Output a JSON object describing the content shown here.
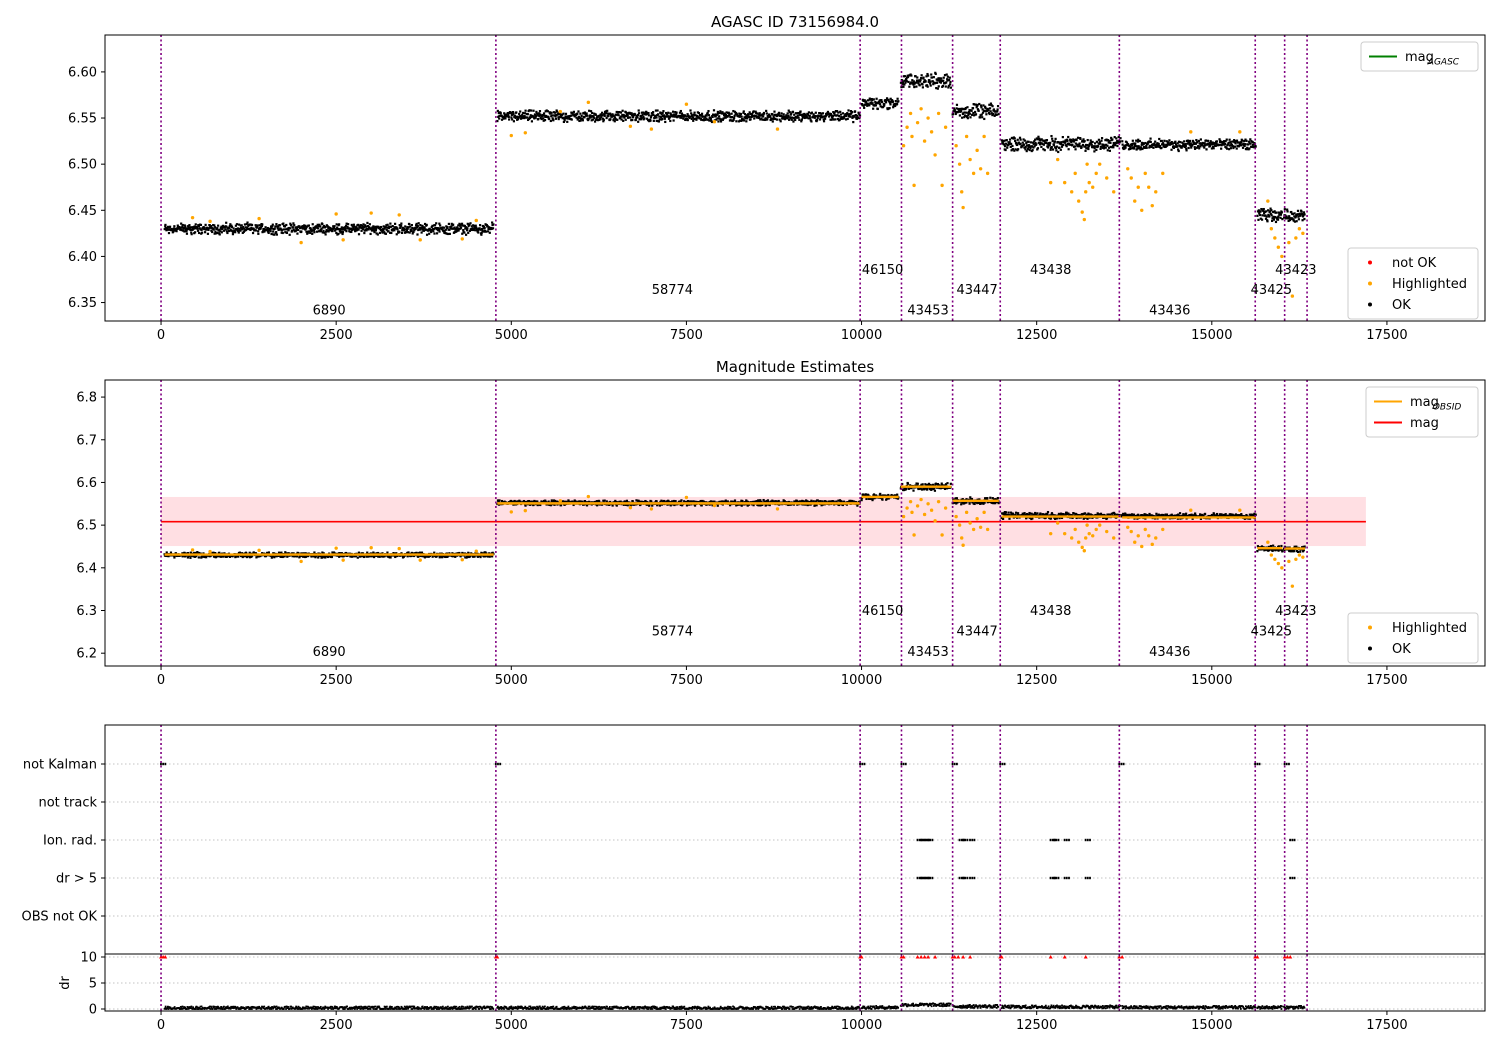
{
  "chart_data": [
    {
      "type": "scatter",
      "title": "AGASC ID 73156984.0",
      "xlim": [
        -800,
        18900
      ],
      "ylim": [
        6.33,
        6.64
      ],
      "xticks": [
        0,
        2500,
        5000,
        7500,
        10000,
        12500,
        15000,
        17500
      ],
      "yticks": [
        6.35,
        6.4,
        6.45,
        6.5,
        6.55,
        6.6
      ],
      "ytick_labels": [
        "6.35",
        "6.40",
        "6.45",
        "6.50",
        "6.55",
        "6.60"
      ],
      "legend_top": {
        "placement": "top-right",
        "entries": [
          {
            "label": "mag",
            "sub": "AGASC",
            "color": "#008000",
            "kind": "line"
          }
        ]
      },
      "legend_bottom": {
        "placement": "bottom-right",
        "entries": [
          {
            "label": "not OK",
            "color": "#ff0000",
            "kind": "dot"
          },
          {
            "label": "Highlighted",
            "color": "#ffa500",
            "kind": "dot"
          },
          {
            "label": "OK",
            "color": "#000000",
            "kind": "dot"
          }
        ]
      },
      "series": [
        {
          "name": "OK",
          "color": "#000000",
          "segments": [
            {
              "x0": 50,
              "x1": 4750,
              "y": 6.43,
              "spread": 0.007
            },
            {
              "x0": 4800,
              "x1": 9980,
              "y": 6.552,
              "spread": 0.007
            },
            {
              "x0": 10000,
              "x1": 10530,
              "y": 6.566,
              "spread": 0.008
            },
            {
              "x0": 10560,
              "x1": 11280,
              "y": 6.59,
              "spread": 0.01
            },
            {
              "x0": 11300,
              "x1": 11960,
              "y": 6.557,
              "spread": 0.009
            },
            {
              "x0": 12000,
              "x1": 13700,
              "y": 6.522,
              "spread": 0.009
            },
            {
              "x0": 13720,
              "x1": 15630,
              "y": 6.521,
              "spread": 0.007
            },
            {
              "x0": 15650,
              "x1": 16010,
              "y": 6.445,
              "spread": 0.008
            },
            {
              "x0": 16030,
              "x1": 16330,
              "y": 6.444,
              "spread": 0.008
            }
          ]
        },
        {
          "name": "Highlighted",
          "color": "#ffa500",
          "points": [
            [
              450,
              6.442
            ],
            [
              700,
              6.438
            ],
            [
              1400,
              6.441
            ],
            [
              2000,
              6.415
            ],
            [
              2500,
              6.446
            ],
            [
              2600,
              6.418
            ],
            [
              3000,
              6.447
            ],
            [
              3400,
              6.445
            ],
            [
              3700,
              6.418
            ],
            [
              4300,
              6.419
            ],
            [
              4500,
              6.439
            ],
            [
              5000,
              6.531
            ],
            [
              5200,
              6.534
            ],
            [
              5700,
              6.557
            ],
            [
              6100,
              6.567
            ],
            [
              6700,
              6.541
            ],
            [
              7000,
              6.538
            ],
            [
              7500,
              6.565
            ],
            [
              7900,
              6.546
            ],
            [
              8800,
              6.538
            ],
            [
              10600,
              6.52
            ],
            [
              10650,
              6.54
            ],
            [
              10700,
              6.555
            ],
            [
              10720,
              6.53
            ],
            [
              10750,
              6.477
            ],
            [
              10800,
              6.545
            ],
            [
              10850,
              6.56
            ],
            [
              10900,
              6.525
            ],
            [
              10950,
              6.55
            ],
            [
              11000,
              6.535
            ],
            [
              11050,
              6.51
            ],
            [
              11100,
              6.555
            ],
            [
              11150,
              6.477
            ],
            [
              11200,
              6.54
            ],
            [
              11350,
              6.52
            ],
            [
              11400,
              6.5
            ],
            [
              11430,
              6.47
            ],
            [
              11450,
              6.453
            ],
            [
              11500,
              6.53
            ],
            [
              11550,
              6.505
            ],
            [
              11600,
              6.49
            ],
            [
              11650,
              6.515
            ],
            [
              11700,
              6.495
            ],
            [
              11750,
              6.53
            ],
            [
              11800,
              6.49
            ],
            [
              12700,
              6.48
            ],
            [
              12800,
              6.505
            ],
            [
              12900,
              6.48
            ],
            [
              13000,
              6.47
            ],
            [
              13050,
              6.49
            ],
            [
              13100,
              6.46
            ],
            [
              13150,
              6.448
            ],
            [
              13180,
              6.44
            ],
            [
              13200,
              6.47
            ],
            [
              13220,
              6.5
            ],
            [
              13250,
              6.48
            ],
            [
              13300,
              6.475
            ],
            [
              13350,
              6.49
            ],
            [
              13400,
              6.5
            ],
            [
              13500,
              6.485
            ],
            [
              13600,
              6.47
            ],
            [
              13800,
              6.495
            ],
            [
              13850,
              6.485
            ],
            [
              13900,
              6.46
            ],
            [
              13950,
              6.475
            ],
            [
              14000,
              6.45
            ],
            [
              14050,
              6.49
            ],
            [
              14100,
              6.475
            ],
            [
              14150,
              6.455
            ],
            [
              14200,
              6.47
            ],
            [
              14300,
              6.49
            ],
            [
              14700,
              6.535
            ],
            [
              15400,
              6.535
            ],
            [
              15800,
              6.46
            ],
            [
              15850,
              6.43
            ],
            [
              15900,
              6.42
            ],
            [
              15950,
              6.41
            ],
            [
              16000,
              6.4
            ],
            [
              16100,
              6.415
            ],
            [
              16150,
              6.357
            ],
            [
              16200,
              6.42
            ],
            [
              16250,
              6.43
            ],
            [
              16300,
              6.425
            ]
          ]
        }
      ],
      "obs_boundaries": [
        0,
        4780,
        9980,
        10570,
        11300,
        11980,
        13680,
        15620,
        16040,
        16360
      ],
      "obsids": [
        {
          "label": "6890",
          "x": 2400,
          "y": 6.337
        },
        {
          "label": "58774",
          "x": 7300,
          "y": 6.359
        },
        {
          "label": "46150",
          "x": 10300,
          "y": 6.381
        },
        {
          "label": "43453",
          "x": 10950,
          "y": 6.337
        },
        {
          "label": "43447",
          "x": 11650,
          "y": 6.359
        },
        {
          "label": "43438",
          "x": 12700,
          "y": 6.381
        },
        {
          "label": "43436",
          "x": 14400,
          "y": 6.337
        },
        {
          "label": "43425",
          "x": 15850,
          "y": 6.359
        },
        {
          "label": "43423",
          "x": 16200,
          "y": 6.381
        }
      ]
    },
    {
      "type": "scatter",
      "title": "Magnitude Estimates",
      "xlim": [
        -800,
        18900
      ],
      "ylim": [
        6.17,
        6.84
      ],
      "xticks": [
        0,
        2500,
        5000,
        7500,
        10000,
        12500,
        15000,
        17500
      ],
      "yticks": [
        6.2,
        6.3,
        6.4,
        6.5,
        6.6,
        6.7,
        6.8
      ],
      "ytick_labels": [
        "6.2",
        "6.3",
        "6.4",
        "6.5",
        "6.6",
        "6.7",
        "6.8"
      ],
      "legend_top": {
        "placement": "top-right",
        "entries": [
          {
            "label": "mag",
            "sub": "OBSID",
            "color": "#ffa500",
            "kind": "line"
          },
          {
            "label": "mag",
            "sub": "",
            "color": "#ff0000",
            "kind": "line"
          }
        ]
      },
      "legend_bottom": {
        "placement": "bottom-right",
        "entries": [
          {
            "label": "Highlighted",
            "color": "#ffa500",
            "kind": "dot"
          },
          {
            "label": "OK",
            "color": "#000000",
            "kind": "dot"
          }
        ]
      },
      "mag": 6.508,
      "mag_band": [
        6.451,
        6.566
      ],
      "mag_xrange": [
        0,
        17200
      ],
      "mag_obsid": [
        {
          "x0": 50,
          "x1": 4750,
          "y": 6.431
        },
        {
          "x0": 4800,
          "x1": 9980,
          "y": 6.551
        },
        {
          "x0": 10000,
          "x1": 10530,
          "y": 6.566
        },
        {
          "x0": 10560,
          "x1": 11280,
          "y": 6.59
        },
        {
          "x0": 11300,
          "x1": 11960,
          "y": 6.557
        },
        {
          "x0": 12000,
          "x1": 13700,
          "y": 6.52
        },
        {
          "x0": 13720,
          "x1": 15630,
          "y": 6.518
        },
        {
          "x0": 15650,
          "x1": 16010,
          "y": 6.446
        },
        {
          "x0": 16030,
          "x1": 16330,
          "y": 6.445
        }
      ],
      "obs_boundaries": [
        0,
        4780,
        9980,
        10570,
        11300,
        11980,
        13680,
        15620,
        16040,
        16360
      ],
      "obsids": [
        {
          "label": "6890",
          "x": 2400,
          "y": 6.193
        },
        {
          "label": "58774",
          "x": 7300,
          "y": 6.241
        },
        {
          "label": "46150",
          "x": 10300,
          "y": 6.289
        },
        {
          "label": "43453",
          "x": 10950,
          "y": 6.193
        },
        {
          "label": "43447",
          "x": 11650,
          "y": 6.241
        },
        {
          "label": "43438",
          "x": 12700,
          "y": 6.289
        },
        {
          "label": "43436",
          "x": 14400,
          "y": 6.193
        },
        {
          "label": "43425",
          "x": 15850,
          "y": 6.241
        },
        {
          "label": "43423",
          "x": 16200,
          "y": 6.289
        }
      ]
    },
    {
      "type": "scatter",
      "title": "",
      "xlim": [
        -800,
        18900
      ],
      "xticks": [
        0,
        2500,
        5000,
        7500,
        10000,
        12500,
        15000,
        17500
      ],
      "flag_rows": [
        "not Kalman",
        "not track",
        "Ion. rad.",
        "dr > 5",
        "OBS not OK"
      ],
      "flag_points": [
        {
          "row": "not Kalman",
          "xs": [
            0,
            4780,
            9980,
            10570,
            11300,
            11980,
            13680,
            15620,
            16040
          ]
        },
        {
          "row": "Ion. rad.",
          "xs": [
            10800,
            10850,
            10900,
            10950,
            11400,
            11450,
            11550,
            12700,
            12750,
            12900,
            13200,
            16120
          ]
        },
        {
          "row": "dr > 5",
          "xs": [
            10800,
            10850,
            10900,
            10950,
            11400,
            11450,
            11550,
            12700,
            12750,
            12900,
            13200,
            16120
          ]
        }
      ],
      "dr_ylabel": "dr",
      "dr_ylim": [
        -0.5,
        10.5
      ],
      "dr_yticks": [
        0,
        5,
        10
      ],
      "dr_ytick_labels": [
        "0",
        "5",
        "10"
      ],
      "dr_flagged": {
        "color": "#ff0000",
        "value": 10,
        "xs": [
          0,
          30,
          60,
          4780,
          4800,
          9980,
          10000,
          10570,
          10600,
          10800,
          10850,
          10900,
          10950,
          11050,
          11300,
          11330,
          11380,
          11450,
          11550,
          11980,
          12000,
          12700,
          12900,
          13200,
          13680,
          13720,
          15620,
          15650,
          16040,
          16080,
          16120
        ]
      },
      "dr_baseline": [
        {
          "x0": 50,
          "x1": 4750,
          "y": 0.2
        },
        {
          "x0": 4800,
          "x1": 9980,
          "y": 0.2
        },
        {
          "x0": 10000,
          "x1": 10530,
          "y": 0.3
        },
        {
          "x0": 10560,
          "x1": 11280,
          "y": 0.8
        },
        {
          "x0": 11300,
          "x1": 11960,
          "y": 0.5
        },
        {
          "x0": 12000,
          "x1": 13700,
          "y": 0.4
        },
        {
          "x0": 13720,
          "x1": 15630,
          "y": 0.3
        },
        {
          "x0": 15650,
          "x1": 16010,
          "y": 0.3
        },
        {
          "x0": 16030,
          "x1": 16330,
          "y": 0.3
        }
      ],
      "obs_boundaries": [
        0,
        4780,
        9980,
        10570,
        11300,
        11980,
        13680,
        15620,
        16040,
        16360
      ]
    }
  ]
}
